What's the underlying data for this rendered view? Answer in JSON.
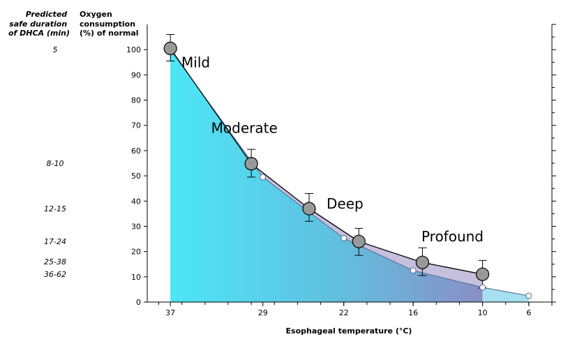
{
  "chart_data": {
    "type": "line",
    "xlabel": "Esophageal temperature (°C)",
    "y_header": [
      "Oxygen",
      "consumption",
      "(%) of normal"
    ],
    "duration_header": [
      "Predicted",
      "safe duration",
      "of DHCA (min)"
    ],
    "x_ticks": [
      "37",
      "29",
      "22",
      "16",
      "10",
      "6"
    ],
    "x_tick_values": [
      37,
      29,
      22,
      16,
      10,
      6
    ],
    "y_ticks": [
      "0",
      "10",
      "20",
      "30",
      "40",
      "50",
      "60",
      "70",
      "80",
      "90",
      "100"
    ],
    "xlim": [
      39,
      4
    ],
    "ylim": [
      0,
      110
    ],
    "zones": [
      {
        "label": "Mild",
        "x": 34.8,
        "y": 93
      },
      {
        "label": "Moderate",
        "x": 30.6,
        "y": 67
      },
      {
        "label": "Deep",
        "x": 21.9,
        "y": 37
      },
      {
        "label": "Profound",
        "x": 12.6,
        "y": 24
      }
    ],
    "durations": [
      {
        "label": "5",
        "y": 100
      },
      {
        "label": "8-10",
        "y": 55
      },
      {
        "label": "12-15",
        "y": 37
      },
      {
        "label": "17-24",
        "y": 24
      },
      {
        "label": "25-38",
        "y": 16
      },
      {
        "label": "36-62",
        "y": 11
      }
    ],
    "series": [
      {
        "marker": "large-filled",
        "x": [
          37,
          30,
          25,
          20.7,
          15.2,
          10
        ],
        "y": [
          100.5,
          54.8,
          37,
          24,
          15.7,
          11
        ],
        "err_low": [
          95.5,
          49.5,
          32,
          18.5,
          10.5,
          5.5
        ],
        "err_high": [
          106,
          60.5,
          43,
          29.2,
          21.5,
          16.5
        ]
      },
      {
        "marker": "small-open",
        "x": [
          37,
          29,
          22,
          16,
          10,
          6
        ],
        "y": [
          100,
          49.5,
          25.3,
          12.5,
          5.8,
          2.5
        ]
      }
    ],
    "colors": {
      "gradient_start": "#4de6f7",
      "gradient_mid": "#62bedf",
      "gradient_end": "#8a8ec5",
      "band": "#a99ccd",
      "tail": "#a6e0f0",
      "marker_fill": "#999999",
      "open_marker_fill": "#ffffff",
      "line": "#000000",
      "open_line": "#4a6a8a"
    }
  }
}
